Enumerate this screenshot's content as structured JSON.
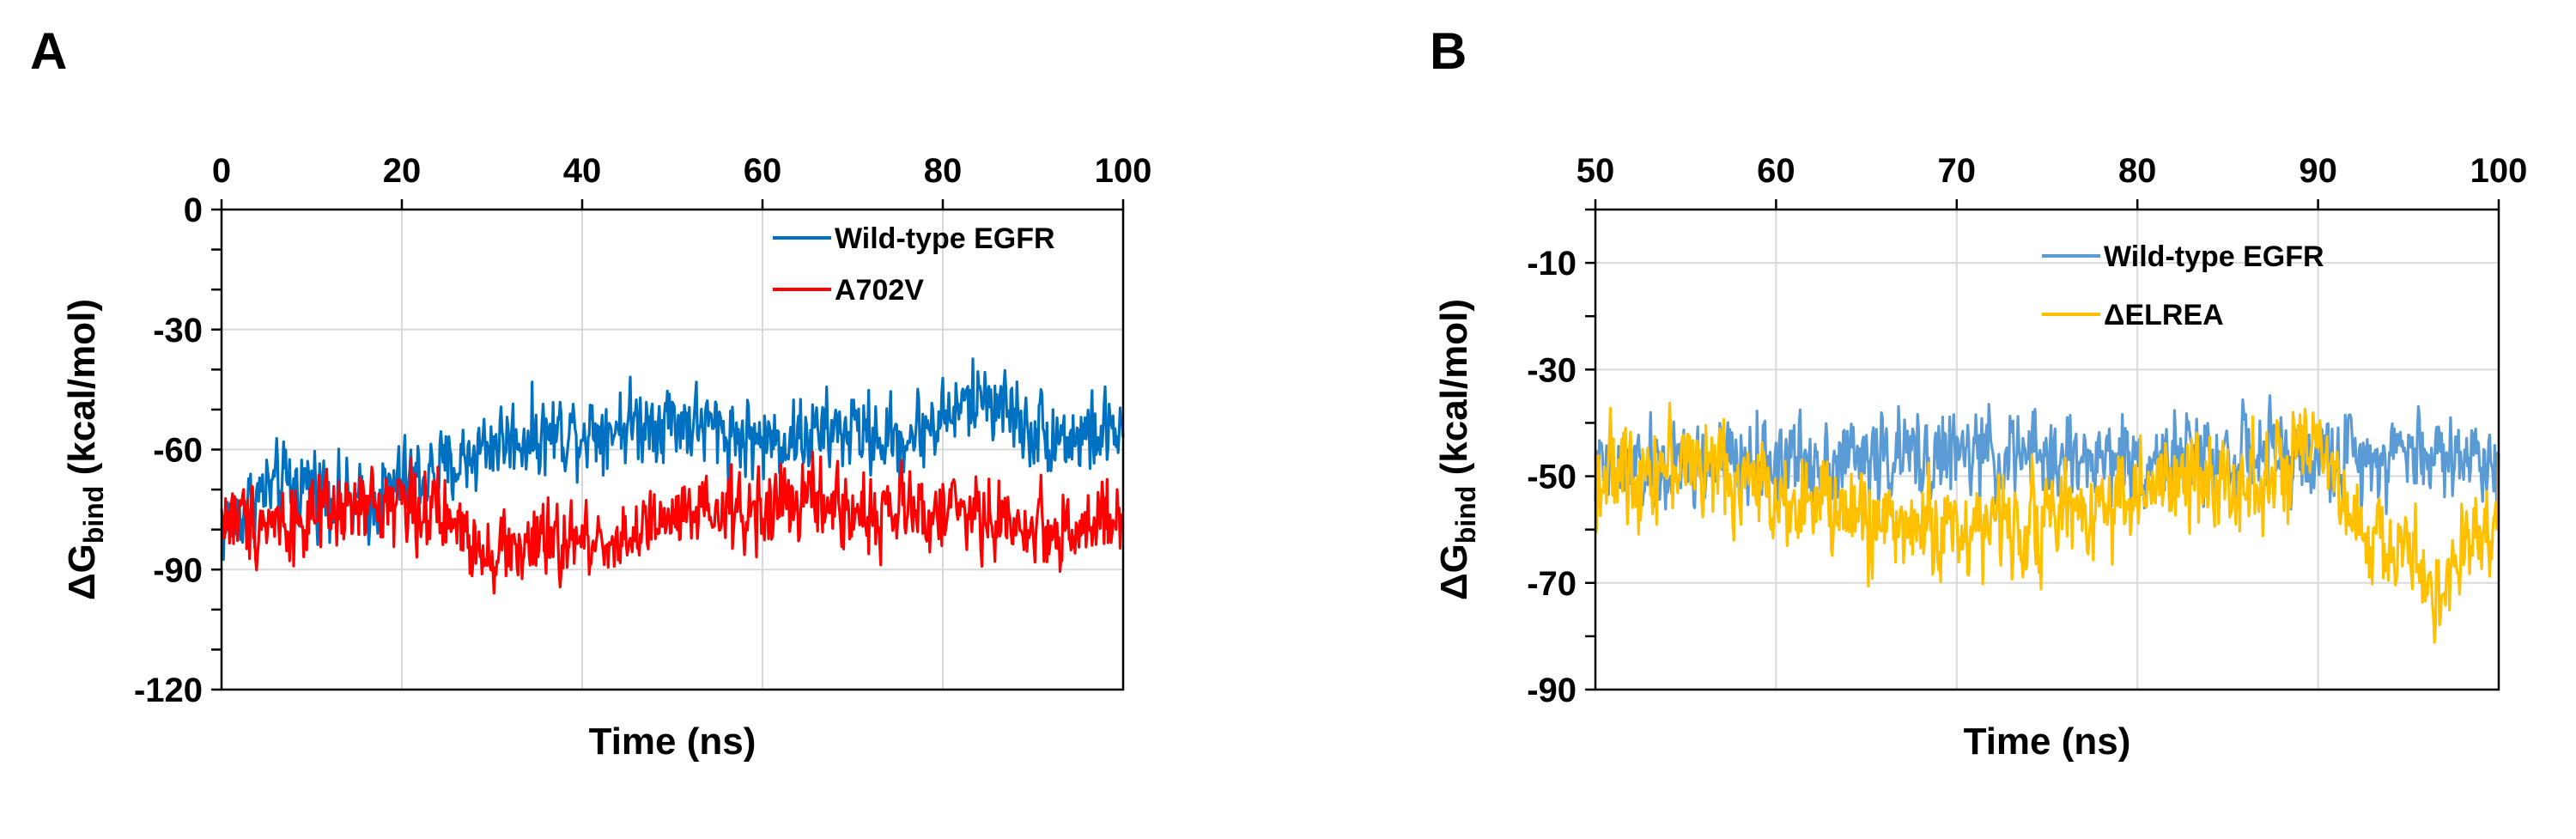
{
  "chart_data": [
    {
      "panel": "A",
      "type": "line",
      "title": "",
      "xlabel": "Time (ns)",
      "ylabel": "ΔGbind (kcal/mol)",
      "ylabel_main": "ΔG",
      "ylabel_sub": "bind",
      "ylabel_rest": " (kcal/mol)",
      "x_axis_position": "top",
      "xlim": [
        0,
        100
      ],
      "ylim": [
        -120,
        0
      ],
      "xticks": [
        0,
        20,
        40,
        60,
        80,
        100
      ],
      "xtick_labels": [
        "0",
        "20",
        "40",
        "60",
        "80",
        "100"
      ],
      "yticks": [
        0,
        -30,
        -60,
        -90,
        -120
      ],
      "ytick_labels": [
        "0",
        "-30",
        "-60",
        "-90",
        "-120"
      ],
      "minor_ytick_step": 10,
      "grid": true,
      "legend_position": "top-right",
      "series": [
        {
          "name": "Wild-type EGFR",
          "color": "#0070c0",
          "noise": 6.0,
          "keypoints": [
            [
              0,
              -80
            ],
            [
              5,
              -70
            ],
            [
              10,
              -68
            ],
            [
              15,
              -75
            ],
            [
              20,
              -68
            ],
            [
              25,
              -65
            ],
            [
              30,
              -58
            ],
            [
              40,
              -55
            ],
            [
              50,
              -52
            ],
            [
              60,
              -58
            ],
            [
              70,
              -55
            ],
            [
              75,
              -58
            ],
            [
              80,
              -52
            ],
            [
              85,
              -46
            ],
            [
              90,
              -55
            ],
            [
              95,
              -57
            ],
            [
              100,
              -55
            ]
          ]
        },
        {
          "name": "A702V",
          "color": "#ff0000",
          "noise": 6.0,
          "keypoints": [
            [
              0,
              -77
            ],
            [
              10,
              -78
            ],
            [
              20,
              -72
            ],
            [
              25,
              -78
            ],
            [
              30,
              -85
            ],
            [
              40,
              -83
            ],
            [
              45,
              -82
            ],
            [
              50,
              -78
            ],
            [
              60,
              -75
            ],
            [
              65,
              -72
            ],
            [
              70,
              -76
            ],
            [
              80,
              -75
            ],
            [
              85,
              -77
            ],
            [
              90,
              -80
            ],
            [
              100,
              -79
            ]
          ]
        }
      ]
    },
    {
      "panel": "B",
      "type": "line",
      "title": "",
      "xlabel": "Time (ns)",
      "ylabel": "ΔGbind (kcal/mol)",
      "ylabel_main": "ΔG",
      "ylabel_sub": "bind",
      "ylabel_rest": " (kcal/mol)",
      "x_axis_position": "top",
      "xlim": [
        50,
        100
      ],
      "ylim": [
        -90,
        0
      ],
      "xticks": [
        50,
        60,
        70,
        80,
        90,
        100
      ],
      "xtick_labels": [
        "50",
        "60",
        "70",
        "80",
        "90",
        "100"
      ],
      "yticks": [
        -10,
        -30,
        -50,
        -70,
        -90
      ],
      "ytick_labels": [
        "-10",
        "-30",
        "-50",
        "-70",
        "-90"
      ],
      "minor_ytick_step": 10,
      "grid": true,
      "legend_position": "top-right",
      "series": [
        {
          "name": "Wild-type EGFR",
          "color": "#5b9bd5",
          "noise": 5.0,
          "keypoints": [
            [
              50,
              -50
            ],
            [
              60,
              -47
            ],
            [
              70,
              -46
            ],
            [
              80,
              -47
            ],
            [
              85,
              -46
            ],
            [
              90,
              -47
            ],
            [
              95,
              -45
            ],
            [
              100,
              -47
            ]
          ]
        },
        {
          "name": "ΔELREA",
          "color": "#ffc000",
          "noise": 5.5,
          "keypoints": [
            [
              50,
              -50
            ],
            [
              55,
              -47
            ],
            [
              60,
              -53
            ],
            [
              65,
              -58
            ],
            [
              70,
              -60
            ],
            [
              75,
              -58
            ],
            [
              80,
              -53
            ],
            [
              85,
              -50
            ],
            [
              88,
              -50
            ],
            [
              90,
              -45
            ],
            [
              92,
              -60
            ],
            [
              95,
              -65
            ],
            [
              97,
              -72
            ],
            [
              100,
              -55
            ]
          ]
        }
      ]
    }
  ]
}
